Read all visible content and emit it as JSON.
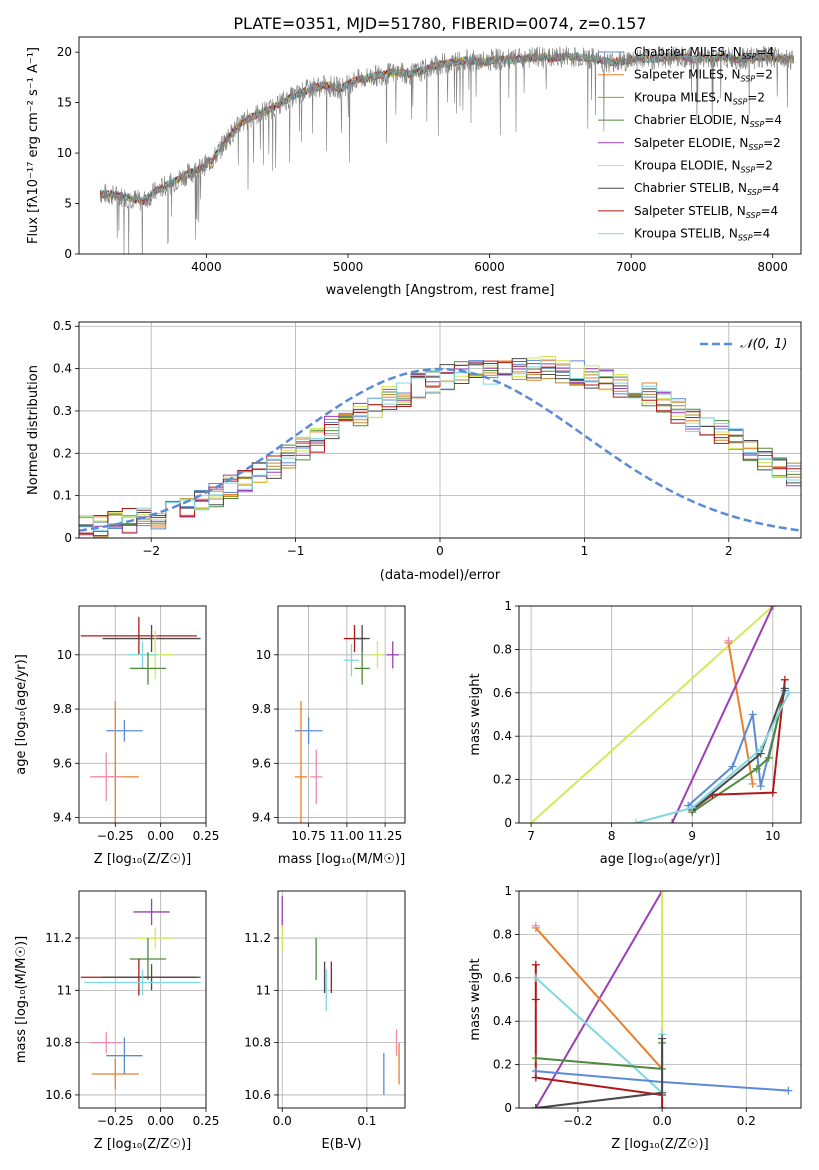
{
  "figure": {
    "title": "PLATE=0351, MJD=51780, FIBERID=0074, z=0.157"
  },
  "chart_data": [
    {
      "id": "spectrum",
      "type": "line",
      "xlabel": "wavelength [Angstrom, rest frame]",
      "ylabel": "Flux [f_λ 10^-17 erg cm^-2 s^-1 A^-1]",
      "xlim": [
        3100,
        8200
      ],
      "ylim": [
        0,
        21.5
      ],
      "xticks": [
        4000,
        5000,
        6000,
        7000,
        8000
      ],
      "yticks": [
        0,
        5,
        10,
        15,
        20
      ],
      "grid": false,
      "legend_position": "top-right",
      "data_color": "#808080",
      "observed_spectrum": {
        "x": [
          3250,
          3350,
          3450,
          3550,
          3650,
          3750,
          3850,
          3950,
          4050,
          4150,
          4250,
          4350,
          4450,
          4550,
          4650,
          4750,
          4850,
          4950,
          5050,
          5150,
          5250,
          5350,
          5450,
          5550,
          5650,
          5750,
          5850,
          5950,
          6050,
          6150,
          6250,
          6350,
          6450,
          6550,
          6650,
          6750,
          6850,
          6950,
          7050,
          7150,
          7250,
          7350,
          7450,
          7550,
          7650,
          7750,
          7850,
          7950,
          8050,
          8150
        ],
        "y": [
          6.0,
          5.8,
          5.6,
          5.2,
          6.3,
          7.0,
          7.8,
          8.4,
          9.4,
          11.5,
          13.0,
          13.8,
          14.3,
          15.2,
          15.8,
          16.5,
          16.7,
          16.4,
          17.2,
          17.5,
          17.8,
          18.0,
          17.8,
          18.3,
          18.8,
          19.0,
          19.2,
          19.0,
          19.3,
          19.2,
          19.4,
          19.5,
          19.4,
          19.6,
          19.5,
          19.3,
          19.0,
          19.1,
          19.4,
          19.3,
          19.5,
          19.6,
          19.3,
          19.4,
          19.5,
          19.3,
          19.4,
          19.5,
          19.4,
          19.3
        ]
      },
      "series": [
        {
          "name": "Chabrier MILES, N_SSP=4",
          "label_main": "Chabrier MILES, N",
          "label_sub": "SSP",
          "label_tail": "=4",
          "color": "#5b8bd6"
        },
        {
          "name": "Salpeter MILES, N_SSP=2",
          "label_main": "Salpeter MILES, N",
          "label_sub": "SSP",
          "label_tail": "=2",
          "color": "#e8802d"
        },
        {
          "name": "Kroupa MILES, N_SSP=2",
          "label_main": "Kroupa MILES, N",
          "label_sub": "SSP",
          "label_tail": "=2",
          "color": "#b58d2f"
        },
        {
          "name": "Chabrier ELODIE, N_SSP=4",
          "label_main": "Chabrier ELODIE, N",
          "label_sub": "SSP",
          "label_tail": "=4",
          "color": "#4f8a3c"
        },
        {
          "name": "Salpeter ELODIE, N_SSP=2",
          "label_main": "Salpeter ELODIE, N",
          "label_sub": "SSP",
          "label_tail": "=2",
          "color": "#9b3fb6"
        },
        {
          "name": "Kroupa ELODIE, N_SSP=2",
          "label_main": "Kroupa ELODIE, N",
          "label_sub": "SSP",
          "label_tail": "=2",
          "color": "#d4e85a"
        },
        {
          "name": "Chabrier STELIB, N_SSP=4",
          "label_main": "Chabrier STELIB, N",
          "label_sub": "SSP",
          "label_tail": "=4",
          "color": "#4a4a4a"
        },
        {
          "name": "Salpeter STELIB, N_SSP=4",
          "label_main": "Salpeter STELIB, N",
          "label_sub": "SSP",
          "label_tail": "=4",
          "color": "#b01818"
        },
        {
          "name": "Kroupa STELIB, N_SSP=4",
          "label_main": "Kroupa STELIB, N",
          "label_sub": "SSP",
          "label_tail": "=4",
          "color": "#7fd8e0"
        }
      ]
    },
    {
      "id": "residuals",
      "type": "line",
      "xlabel": "(data-model)/error",
      "ylabel": "Normed distribution",
      "xlim": [
        -2.5,
        2.5
      ],
      "ylim": [
        0,
        0.51
      ],
      "xticks": [
        -2,
        -1,
        0,
        1,
        2
      ],
      "yticks": [
        0.0,
        0.1,
        0.2,
        0.3,
        0.4,
        0.5
      ],
      "grid": true,
      "legend": "𝒩(0, 1)",
      "legend_position": "top-right",
      "gaussian_color": "#5b8bd6",
      "histogram_bin_width": 0.1,
      "histogram_reference": [
        0.03,
        0.03,
        0.04,
        0.04,
        0.05,
        0.05,
        0.07,
        0.07,
        0.09,
        0.1,
        0.12,
        0.13,
        0.15,
        0.17,
        0.19,
        0.21,
        0.23,
        0.26,
        0.28,
        0.29,
        0.31,
        0.33,
        0.34,
        0.36,
        0.37,
        0.38,
        0.39,
        0.39,
        0.39,
        0.39,
        0.4,
        0.4,
        0.4,
        0.39,
        0.39,
        0.38,
        0.37,
        0.36,
        0.35,
        0.34,
        0.32,
        0.3,
        0.28,
        0.27,
        0.25,
        0.23,
        0.21,
        0.19,
        0.17,
        0.15
      ]
    },
    {
      "id": "age_vs_Z",
      "type": "scatter",
      "xlabel": "Z [log₁₀(Z/Z☉)]",
      "ylabel": "age  [log₁₀(age/yr)]",
      "xlim": [
        -0.45,
        0.25
      ],
      "ylim": [
        9.38,
        10.18
      ],
      "xticks": [
        -0.25,
        0.0,
        0.25
      ],
      "xticklabels": [
        "−0.25",
        "0.00",
        "0.25"
      ],
      "yticks": [
        9.4,
        9.6,
        9.8,
        10.0
      ],
      "grid": true,
      "points": [
        {
          "x": -0.12,
          "y": 10.07,
          "xerr": 0.32,
          "yerr": 0.07,
          "color": "#b01818"
        },
        {
          "x": -0.05,
          "y": 10.06,
          "xerr": 0.27,
          "yerr": 0.05,
          "color": "#4a4a4a"
        },
        {
          "x": -0.03,
          "y": 10.0,
          "xerr": 0.1,
          "yerr": 0.09,
          "color": "#d4e85a"
        },
        {
          "x": -0.1,
          "y": 10.0,
          "xerr": 0.08,
          "yerr": 0.05,
          "color": "#7fd8e0"
        },
        {
          "x": -0.07,
          "y": 9.95,
          "xerr": 0.1,
          "yerr": 0.06,
          "color": "#4f8a3c"
        },
        {
          "x": -0.2,
          "y": 9.72,
          "xerr": 0.1,
          "yerr": 0.04,
          "color": "#5b8bd6"
        },
        {
          "x": -0.25,
          "y": 9.55,
          "xerr": 0.13,
          "yerr": 0.28,
          "color": "#e8802d"
        },
        {
          "x": -0.3,
          "y": 9.55,
          "xerr": 0.09,
          "yerr": 0.09,
          "color": "#f08bb0"
        }
      ]
    },
    {
      "id": "age_vs_mass",
      "type": "scatter",
      "xlabel": "mass [log₁₀(M/M☉)]",
      "xlim": [
        10.55,
        11.38
      ],
      "ylim": [
        9.38,
        10.18
      ],
      "xticks": [
        10.75,
        11.0,
        11.25
      ],
      "xticklabels": [
        "10.75",
        "11.00",
        "11.25"
      ],
      "yticks": [
        9.4,
        9.6,
        9.8,
        10.0
      ],
      "grid": true,
      "points": [
        {
          "x": 11.05,
          "y": 10.06,
          "xerr": 0.07,
          "yerr": 0.05,
          "color": "#b01818"
        },
        {
          "x": 11.1,
          "y": 10.06,
          "xerr": 0.05,
          "yerr": 0.05,
          "color": "#4a4a4a"
        },
        {
          "x": 11.2,
          "y": 10.0,
          "xerr": 0.04,
          "yerr": 0.05,
          "color": "#d4e85a"
        },
        {
          "x": 11.3,
          "y": 10.0,
          "xerr": 0.04,
          "yerr": 0.05,
          "color": "#9b3fb6"
        },
        {
          "x": 11.1,
          "y": 9.95,
          "xerr": 0.05,
          "yerr": 0.06,
          "color": "#4f8a3c"
        },
        {
          "x": 11.03,
          "y": 9.98,
          "xerr": 0.05,
          "yerr": 0.06,
          "color": "#7fd8e0"
        },
        {
          "x": 10.75,
          "y": 9.72,
          "xerr": 0.09,
          "yerr": 0.05,
          "color": "#5b8bd6"
        },
        {
          "x": 10.7,
          "y": 9.55,
          "xerr": 0.04,
          "yerr": 0.28,
          "color": "#e8802d"
        },
        {
          "x": 10.8,
          "y": 9.55,
          "xerr": 0.04,
          "yerr": 0.1,
          "color": "#f08bb0"
        }
      ]
    },
    {
      "id": "weight_vs_age",
      "type": "line",
      "xlabel": "age  [log₁₀(age/yr)]",
      "ylabel": "mass weight",
      "xlim": [
        6.85,
        10.35
      ],
      "ylim": [
        0,
        1
      ],
      "xticks": [
        7,
        8,
        9,
        10
      ],
      "yticks": [
        0.0,
        0.2,
        0.4,
        0.6,
        0.8,
        1.0
      ],
      "grid": true,
      "series": [
        {
          "color": "#d4e85a",
          "x": [
            7.0,
            10.0
          ],
          "y": [
            0.0,
            1.0
          ]
        },
        {
          "color": "#e8802d",
          "x": [
            9.45,
            9.75
          ],
          "y": [
            0.83,
            0.18
          ]
        },
        {
          "color": "#f08bb0",
          "x": [
            9.45
          ],
          "y": [
            0.84
          ]
        },
        {
          "color": "#9b3fb6",
          "x": [
            8.75,
            10.0
          ],
          "y": [
            0.0,
            1.0
          ]
        },
        {
          "color": "#5b8bd6",
          "x": [
            8.95,
            9.5,
            9.75,
            9.85,
            10.15
          ],
          "y": [
            0.08,
            0.26,
            0.5,
            0.17,
            0.61
          ]
        },
        {
          "color": "#4f8a3c",
          "x": [
            9.0,
            9.8,
            9.95,
            10.15
          ],
          "y": [
            0.05,
            0.25,
            0.3,
            0.62
          ]
        },
        {
          "color": "#b01818",
          "x": [
            9.0,
            9.25,
            10.0,
            10.15
          ],
          "y": [
            0.06,
            0.13,
            0.14,
            0.66
          ]
        },
        {
          "color": "#4a4a4a",
          "x": [
            9.0,
            9.85,
            10.15
          ],
          "y": [
            0.06,
            0.32,
            0.62
          ]
        },
        {
          "color": "#7fd8e0",
          "x": [
            8.3,
            9.0,
            9.85,
            10.2
          ],
          "y": [
            0.0,
            0.07,
            0.34,
            0.6
          ]
        }
      ]
    },
    {
      "id": "mass_vs_Z",
      "type": "scatter",
      "xlabel": "Z [log₁₀(Z/Z☉)]",
      "ylabel": "mass [log₁₀(M/M☉)]",
      "xlim": [
        -0.45,
        0.25
      ],
      "ylim": [
        10.55,
        11.38
      ],
      "xticks": [
        -0.25,
        0.0,
        0.25
      ],
      "xticklabels": [
        "−0.25",
        "0.00",
        "0.25"
      ],
      "yticks": [
        10.6,
        10.8,
        11.0,
        11.2
      ],
      "grid": true,
      "points": [
        {
          "x": -0.05,
          "y": 11.3,
          "xerr": 0.1,
          "yerr": 0.05,
          "color": "#9b3fb6"
        },
        {
          "x": -0.03,
          "y": 11.2,
          "xerr": 0.1,
          "yerr": 0.04,
          "color": "#d4e85a"
        },
        {
          "x": -0.07,
          "y": 11.12,
          "xerr": 0.1,
          "yerr": 0.08,
          "color": "#4f8a3c"
        },
        {
          "x": -0.12,
          "y": 11.05,
          "xerr": 0.32,
          "yerr": 0.07,
          "color": "#b01818"
        },
        {
          "x": -0.05,
          "y": 11.05,
          "xerr": 0.27,
          "yerr": 0.05,
          "color": "#4a4a4a"
        },
        {
          "x": -0.1,
          "y": 11.03,
          "xerr": 0.32,
          "yerr": 0.05,
          "color": "#7fd8e0"
        },
        {
          "x": -0.3,
          "y": 10.8,
          "xerr": 0.09,
          "yerr": 0.04,
          "color": "#f08bb0"
        },
        {
          "x": -0.2,
          "y": 10.75,
          "xerr": 0.1,
          "yerr": 0.07,
          "color": "#5b8bd6"
        },
        {
          "x": -0.25,
          "y": 10.68,
          "xerr": 0.13,
          "yerr": 0.06,
          "color": "#e8802d"
        }
      ]
    },
    {
      "id": "mass_vs_ebv",
      "type": "scatter",
      "xlabel": "E(B-V)",
      "xlim": [
        -0.005,
        0.145
      ],
      "ylim": [
        10.55,
        11.38
      ],
      "xticks": [
        0.0,
        0.1
      ],
      "xticklabels": [
        "0.0",
        "0.1"
      ],
      "yticks": [
        10.6,
        10.8,
        11.0,
        11.2
      ],
      "grid": true,
      "points": [
        {
          "x": 0.0,
          "y": 11.3,
          "xerr": 0.0,
          "yerr": 0.06,
          "color": "#9b3fb6"
        },
        {
          "x": 0.0,
          "y": 11.2,
          "xerr": 0.0,
          "yerr": 0.05,
          "color": "#d4e85a"
        },
        {
          "x": 0.04,
          "y": 11.12,
          "xerr": 0.0,
          "yerr": 0.08,
          "color": "#4f8a3c"
        },
        {
          "x": 0.05,
          "y": 11.05,
          "xerr": 0.0,
          "yerr": 0.06,
          "color": "#4a4a4a"
        },
        {
          "x": 0.058,
          "y": 11.05,
          "xerr": 0.0,
          "yerr": 0.06,
          "color": "#b01818"
        },
        {
          "x": 0.052,
          "y": 11.0,
          "xerr": 0.0,
          "yerr": 0.08,
          "color": "#7fd8e0"
        },
        {
          "x": 0.12,
          "y": 10.68,
          "xerr": 0.0,
          "yerr": 0.08,
          "color": "#5b8bd6"
        },
        {
          "x": 0.135,
          "y": 10.8,
          "xerr": 0.0,
          "yerr": 0.05,
          "color": "#f08bb0"
        },
        {
          "x": 0.138,
          "y": 10.72,
          "xerr": 0.0,
          "yerr": 0.08,
          "color": "#e8802d"
        }
      ]
    },
    {
      "id": "weight_vs_Z",
      "type": "line",
      "xlabel": "Z [log₁₀(Z/Z☉)]",
      "ylabel": "mass weight",
      "xlim": [
        -0.34,
        0.33
      ],
      "ylim": [
        0,
        1
      ],
      "xticks": [
        -0.2,
        0.0,
        0.2
      ],
      "xticklabels": [
        "−0.2",
        "0.0",
        "0.2"
      ],
      "yticks": [
        0.0,
        0.2,
        0.4,
        0.6,
        0.8,
        1.0
      ],
      "grid": true,
      "series": [
        {
          "color": "#9b3fb6",
          "x": [
            -0.3,
            0.0
          ],
          "y": [
            0.0,
            1.0
          ]
        },
        {
          "color": "#d4e85a",
          "x": [
            0.0,
            0.0
          ],
          "y": [
            0.0,
            1.0
          ]
        },
        {
          "color": "#e8802d",
          "x": [
            -0.3,
            0.0
          ],
          "y": [
            0.83,
            0.18
          ]
        },
        {
          "color": "#f08bb0",
          "x": [
            -0.3
          ],
          "y": [
            0.84
          ]
        },
        {
          "color": "#b01818",
          "x": [
            -0.3,
            -0.3,
            -0.3,
            0.0,
            0.0
          ],
          "y": [
            0.66,
            0.5,
            0.14,
            0.06,
            0.0
          ]
        },
        {
          "color": "#7fd8e0",
          "x": [
            -0.3,
            0.0,
            0.0
          ],
          "y": [
            0.6,
            0.07,
            0.34
          ]
        },
        {
          "color": "#4f8a3c",
          "x": [
            -0.3,
            0.0,
            0.0
          ],
          "y": [
            0.23,
            0.18,
            0.3
          ]
        },
        {
          "color": "#5b8bd6",
          "x": [
            -0.3,
            0.0,
            0.3
          ],
          "y": [
            0.17,
            0.12,
            0.08
          ]
        },
        {
          "color": "#4a4a4a",
          "x": [
            -0.3,
            0.0,
            0.0
          ],
          "y": [
            0.0,
            0.07,
            0.32
          ]
        }
      ]
    }
  ]
}
